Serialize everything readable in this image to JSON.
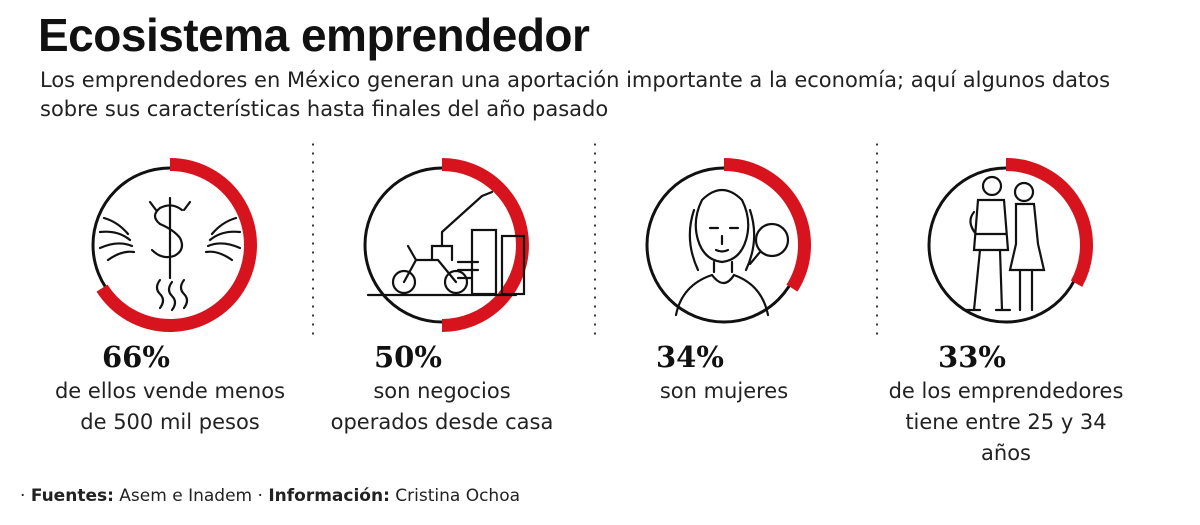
{
  "title": "Ecosistema emprendedor",
  "subtitle": "Los emprendedores en México generan una aportación importante a la economía; aquí algunos datos sobre sus características hasta finales del año pasado",
  "chart_data": {
    "type": "pie",
    "series": [
      {
        "value": 66,
        "value_label": "66%",
        "label": "de ellos vende menos de 500 mil pesos",
        "icon": "money-wings-icon"
      },
      {
        "value": 50,
        "value_label": "50%",
        "label": "son negocios operados desde casa",
        "icon": "home-motorcycle-icon"
      },
      {
        "value": 34,
        "value_label": "34%",
        "label": "son mujeres",
        "icon": "woman-icon"
      },
      {
        "value": 33,
        "value_label": "33%",
        "label": "de los emprendedores tiene entre 25 y 34 años",
        "icon": "couple-icon"
      }
    ],
    "ring_color": "#d7141d"
  },
  "footer": {
    "sources_label": "Fuentes:",
    "sources_value": "Asem e Inadem",
    "info_label": "Información:",
    "info_value": "Cristina Ochoa"
  }
}
